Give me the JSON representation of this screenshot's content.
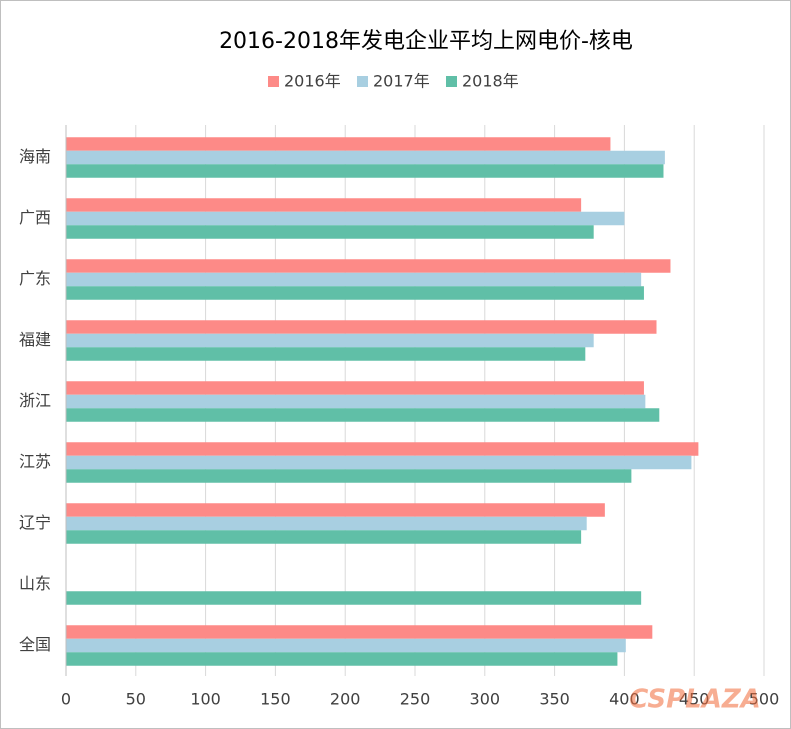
{
  "chart_data": {
    "type": "hbar",
    "title": "2016-2018年发电企业平均上网电价-核电",
    "categories": [
      "海南",
      "广西",
      "广东",
      "福建",
      "浙江",
      "江苏",
      "辽宁",
      "山东",
      "全国"
    ],
    "series": [
      {
        "name": "2016年",
        "color": "#fd8a87",
        "values": [
          390,
          369,
          433,
          423,
          414,
          453,
          386,
          null,
          420
        ]
      },
      {
        "name": "2017年",
        "color": "#a8cfe1",
        "values": [
          429,
          400,
          412,
          378,
          415,
          448,
          373,
          null,
          401
        ]
      },
      {
        "name": "2018年",
        "color": "#60bfa7",
        "values": [
          428,
          378,
          414,
          372,
          425,
          405,
          369,
          412,
          395
        ]
      }
    ],
    "xlim": [
      0,
      500
    ],
    "xticks": [
      0,
      50,
      100,
      150,
      200,
      250,
      300,
      350,
      400,
      450,
      500
    ],
    "grid": true,
    "legend": "top",
    "watermark": "CSPLAZA"
  }
}
